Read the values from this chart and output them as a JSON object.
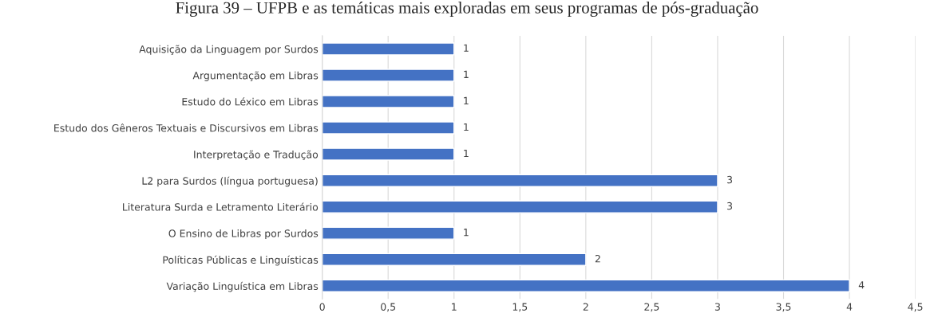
{
  "chart_data": {
    "type": "bar",
    "orientation": "horizontal",
    "title": "Figura 39 – UFPB e as temáticas mais exploradas em seus programas de pós-graduação",
    "categories": [
      "Aquisição da Linguagem por Surdos",
      "Argumentação em Libras",
      "Estudo do Léxico em Libras",
      "Estudo dos Gêneros Textuais e Discursivos em Libras",
      "Interpretação e Tradução",
      "L2 para Surdos (língua portuguesa)",
      "Literatura Surda e Letramento Literário",
      "O Ensino de Libras por Surdos",
      "Políticas Públicas e Linguísticas",
      "Variação Linguística em Libras"
    ],
    "values": [
      1,
      1,
      1,
      1,
      1,
      3,
      3,
      1,
      2,
      4
    ],
    "color": "#4472c4",
    "xlim": [
      0,
      4.5
    ],
    "xticks": [
      0,
      {
        "value": 0.5,
        "label": "0,5"
      },
      1,
      {
        "value": 1.5,
        "label": "1,5"
      },
      2,
      {
        "value": 2.5,
        "label": "2,5"
      },
      3,
      {
        "value": 3.5,
        "label": "3,5"
      },
      4,
      {
        "value": 4.5,
        "label": "4,5"
      }
    ],
    "grid": "x",
    "data_labels": true
  }
}
